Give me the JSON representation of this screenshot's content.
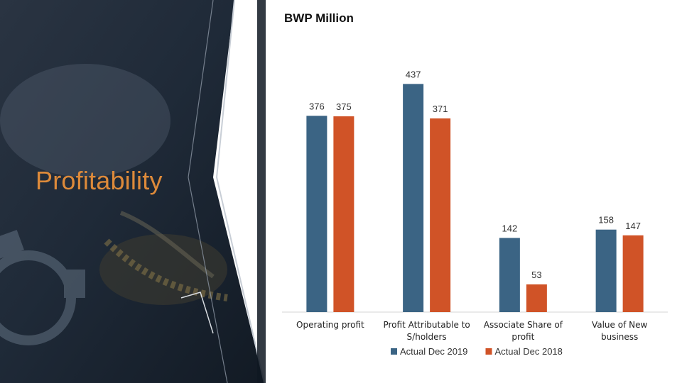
{
  "slide": {
    "section_title": "Profitability",
    "colors": {
      "title_orange": "#dd8a3a",
      "background_dark": "#1c2633"
    }
  },
  "chart_data": {
    "type": "bar",
    "title": "BWP Million",
    "categories": [
      [
        "Operating profit"
      ],
      [
        "Profit Attributable to",
        "S/holders"
      ],
      [
        "Associate Share of",
        "profit"
      ],
      [
        "Value of New",
        "business"
      ]
    ],
    "series": [
      {
        "name": "Actual Dec 2019",
        "color": "#3b6484",
        "values": [
          376,
          437,
          142,
          158
        ]
      },
      {
        "name": "Actual Dec 2018",
        "color": "#d05327",
        "values": [
          375,
          371,
          53,
          147
        ]
      }
    ],
    "ylim": [
      0,
      500
    ],
    "grid": false,
    "legend": "bottom"
  }
}
